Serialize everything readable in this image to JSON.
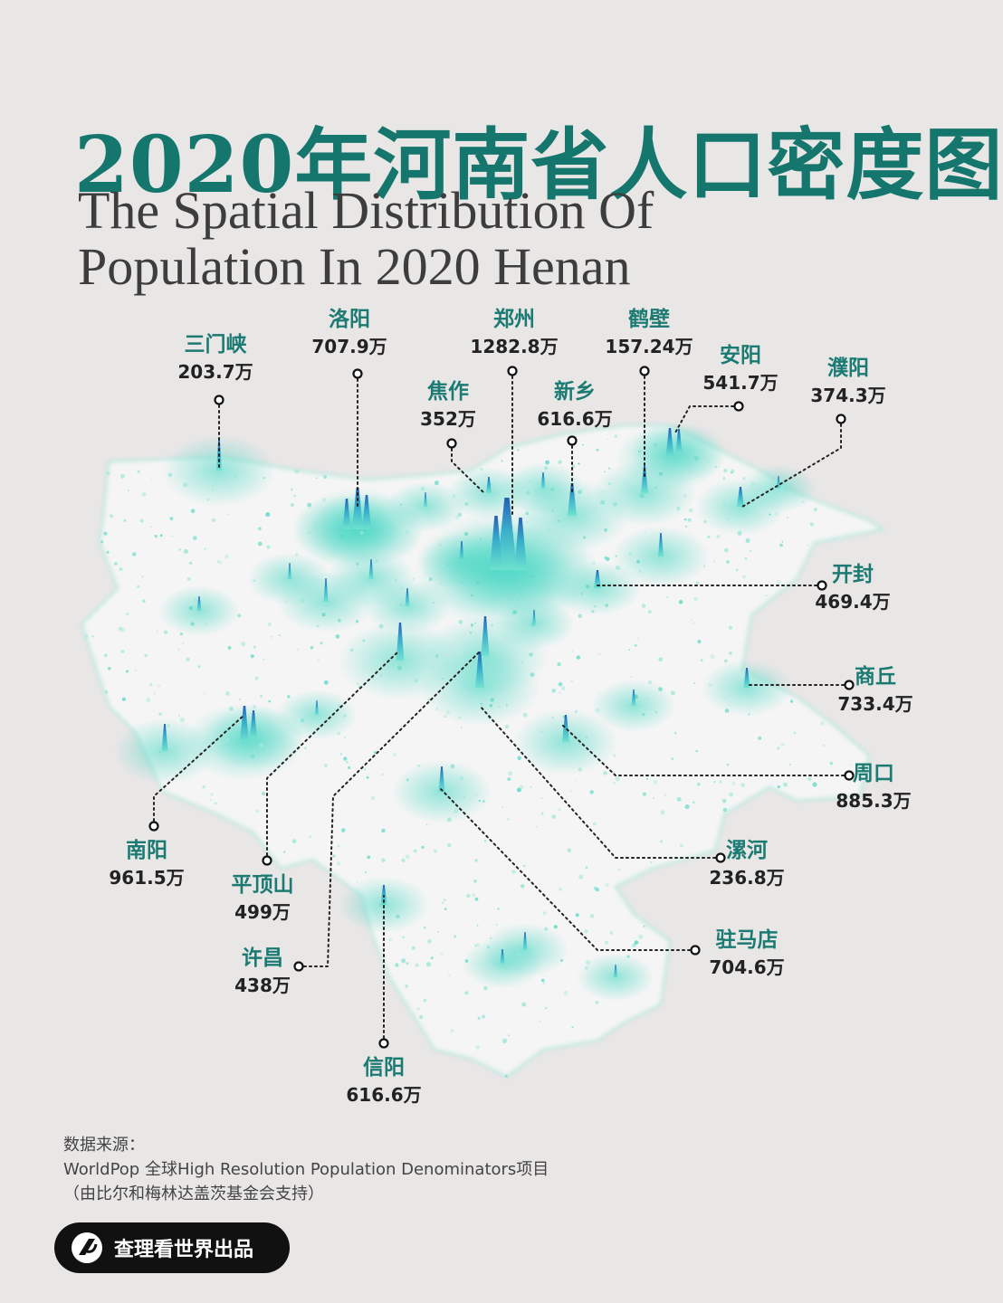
{
  "title": "2020年河南省人口密度图",
  "subtitle_line1": "The Spatial Distribution Of",
  "subtitle_line2": "Population In 2020 Henan",
  "colors": {
    "accent": "#15766d",
    "map_light": "#7fe3d3",
    "map_dark": "#1565b5",
    "background": "#e9e6e6"
  },
  "cities": [
    {
      "name": "三门峡",
      "value": "203.7万"
    },
    {
      "name": "洛阳",
      "value": "707.9万"
    },
    {
      "name": "郑州",
      "value": "1282.8万"
    },
    {
      "name": "鹤壁",
      "value": "157.24万"
    },
    {
      "name": "安阳",
      "value": "541.7万"
    },
    {
      "name": "濮阳",
      "value": "374.3万"
    },
    {
      "name": "焦作",
      "value": "352万"
    },
    {
      "name": "新乡",
      "value": "616.6万"
    },
    {
      "name": "开封",
      "value": "469.4万"
    },
    {
      "name": "商丘",
      "value": "733.4万"
    },
    {
      "name": "周口",
      "value": "885.3万"
    },
    {
      "name": "漯河",
      "value": "236.8万"
    },
    {
      "name": "驻马店",
      "value": "704.6万"
    },
    {
      "name": "信阳",
      "value": "616.6万"
    },
    {
      "name": "许昌",
      "value": "438万"
    },
    {
      "name": "平顶山",
      "value": "499万"
    },
    {
      "name": "南阳",
      "value": "961.5万"
    }
  ],
  "source": {
    "label": "数据来源：",
    "line1": "WorldPop 全球High Resolution Population Denominators项目",
    "line2": "（由比尔和梅林达盖茨基金会支持）"
  },
  "badge": {
    "text": "查理看世界出品",
    "icon": "brand-logo-icon"
  }
}
